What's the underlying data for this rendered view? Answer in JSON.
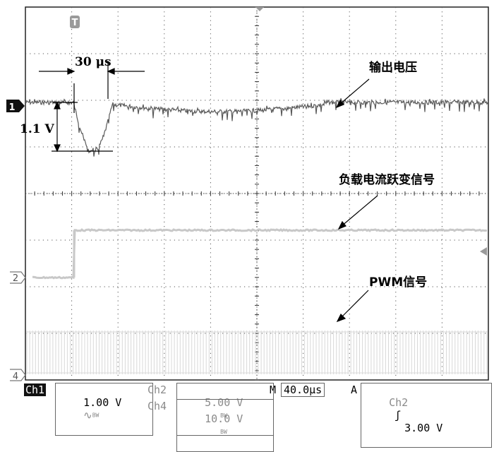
{
  "annotations": {
    "time_span": "30 μs",
    "voltage_drop": "1.1 V",
    "output_voltage": "输出电压",
    "load_step_signal": "负载电流跃变信号",
    "pwm_signal": "PWM信号"
  },
  "markers": {
    "trigger": "T",
    "ch1": "1",
    "ch2": "2",
    "ch4": "4"
  },
  "status_bar": {
    "ch1_label": "Ch1",
    "ch1_scale": "1.00 V",
    "ch1_coupling": "∿",
    "bw_mark": "BW",
    "ch2_label": "Ch2",
    "ch2_scale": "5.00 V",
    "ch4_label": "Ch4",
    "ch4_scale": "10.0 V",
    "timebase_label": "M",
    "timebase": "40.0μs",
    "trigger_label": "A",
    "trigger_source": "Ch2",
    "trigger_slope": "ʃ",
    "trigger_level": "3.00 V"
  },
  "colors": {
    "grid": "#555555",
    "output_trace": "#5a5a5a",
    "ch2_trace": "#c8c8c8",
    "pwm_trace": "#d4d4d4",
    "text": "#000000"
  }
}
